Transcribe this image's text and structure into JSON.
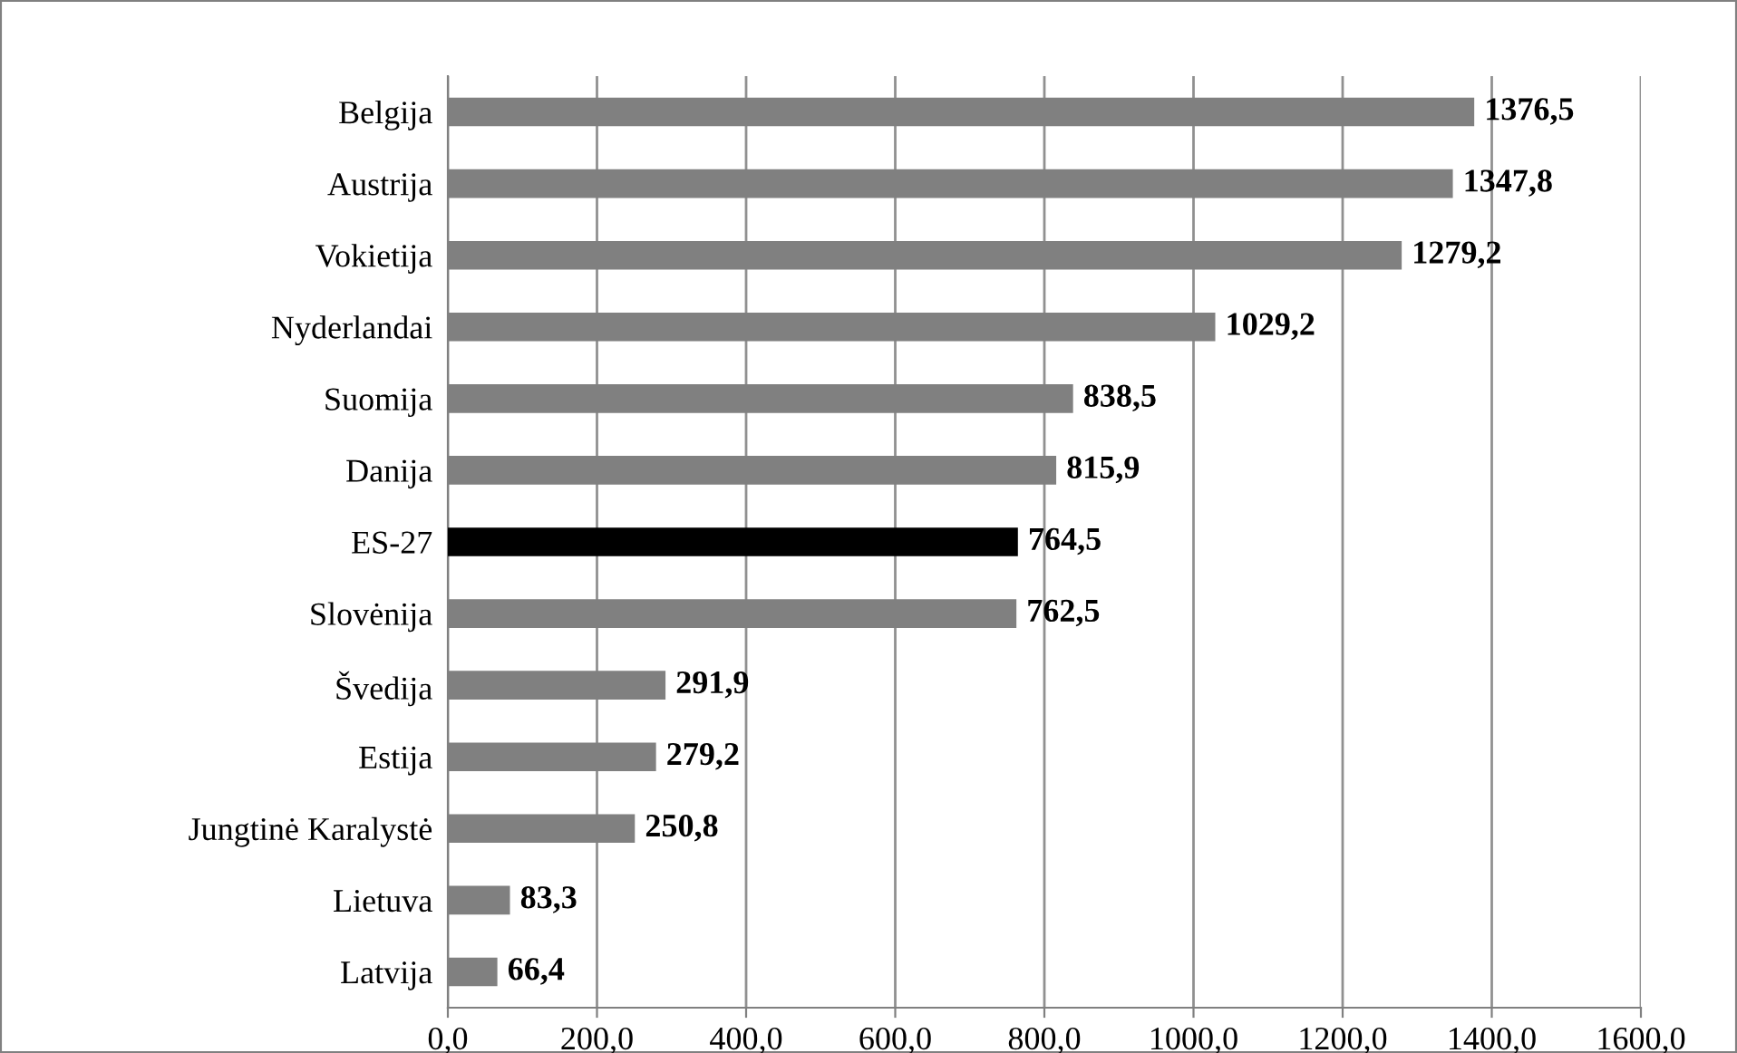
{
  "chart_data": {
    "type": "bar",
    "orientation": "horizontal",
    "categories": [
      "Belgija",
      "Austrija",
      "Vokietija",
      "Nyderlandai",
      "Suomija",
      "Danija",
      "ES-27",
      "Slovėnija",
      "Švedija",
      "Estija",
      "Jungtinė Karalystė",
      "Lietuva",
      "Latvija"
    ],
    "values": [
      1376.5,
      1347.8,
      1279.2,
      1029.2,
      838.5,
      815.9,
      764.5,
      762.5,
      291.9,
      279.2,
      250.8,
      83.3,
      66.4
    ],
    "colors": [
      "#808080",
      "#808080",
      "#808080",
      "#808080",
      "#808080",
      "#808080",
      "#000000",
      "#808080",
      "#808080",
      "#808080",
      "#808080",
      "#808080",
      "#808080"
    ],
    "value_labels": [
      "1376,5",
      "1347,8",
      "1279,2",
      "1029,2",
      "838,5",
      "815,9",
      "764,5",
      "762,5",
      "291,9",
      "279,2",
      "250,8",
      "83,3",
      "66,4"
    ],
    "xlim": [
      0,
      1600
    ],
    "xticks": [
      {
        "value": 0,
        "label": "0,0"
      },
      {
        "value": 200,
        "label": "200,0"
      },
      {
        "value": 400,
        "label": "400,0"
      },
      {
        "value": 600,
        "label": "600,0"
      },
      {
        "value": 800,
        "label": "800,0"
      },
      {
        "value": 1000,
        "label": "1000,0"
      },
      {
        "value": 1200,
        "label": "1200,0"
      },
      {
        "value": 1400,
        "label": "1400,0"
      },
      {
        "value": 1600,
        "label": "1600,0"
      }
    ],
    "grid": "x",
    "legend": false
  }
}
